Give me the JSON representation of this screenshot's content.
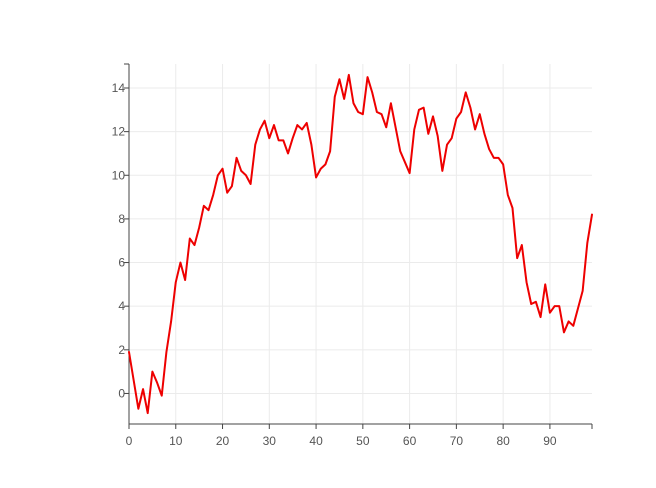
{
  "chart_data": {
    "type": "line",
    "title": "",
    "xlabel": "",
    "ylabel": "",
    "xlim": [
      0,
      99
    ],
    "ylim": [
      -1.4,
      15.1
    ],
    "grid": true,
    "legend": "none",
    "x_ticks": [
      0,
      10,
      20,
      30,
      40,
      50,
      60,
      70,
      80,
      90
    ],
    "y_ticks": [
      0,
      2,
      4,
      6,
      8,
      10,
      12,
      14
    ],
    "line_color": "#ee0000",
    "series": [
      {
        "x": [
          0,
          1,
          2,
          3,
          4,
          5,
          6,
          7,
          8,
          9,
          10,
          11,
          12,
          13,
          14,
          15,
          16,
          17,
          18,
          19,
          20,
          21,
          22,
          23,
          24,
          25,
          26,
          27,
          28,
          29,
          30,
          31,
          32,
          33,
          34,
          35,
          36,
          37,
          38,
          39,
          40,
          41,
          42,
          43,
          44,
          45,
          46,
          47,
          48,
          49,
          50,
          51,
          52,
          53,
          54,
          55,
          56,
          57,
          58,
          59,
          60,
          61,
          62,
          63,
          64,
          65,
          66,
          67,
          68,
          69,
          70,
          71,
          72,
          73,
          74,
          75,
          76,
          77,
          78,
          79,
          80,
          81,
          82,
          83,
          84,
          85,
          86,
          87,
          88,
          89,
          90,
          91,
          92,
          93,
          94,
          95,
          96,
          97,
          98,
          99
        ],
        "values": [
          1.9,
          0.6,
          -0.7,
          0.2,
          -0.9,
          1.0,
          0.5,
          -0.1,
          1.9,
          3.3,
          5.1,
          6.0,
          5.2,
          7.1,
          6.8,
          7.6,
          8.6,
          8.4,
          9.1,
          10.0,
          10.3,
          9.2,
          9.5,
          10.8,
          10.2,
          10.0,
          9.6,
          11.4,
          12.1,
          12.5,
          11.7,
          12.3,
          11.6,
          11.6,
          11.0,
          11.7,
          12.3,
          12.1,
          12.4,
          11.4,
          9.9,
          10.3,
          10.5,
          11.1,
          13.6,
          14.4,
          13.5,
          14.6,
          13.3,
          12.9,
          12.8,
          14.5,
          13.8,
          12.9,
          12.8,
          12.2,
          13.3,
          12.2,
          11.1,
          10.6,
          10.1,
          12.1,
          13.0,
          13.1,
          11.9,
          12.7,
          11.8,
          10.2,
          11.4,
          11.7,
          12.6,
          12.9,
          13.8,
          13.1,
          12.1,
          12.8,
          11.9,
          11.2,
          10.8,
          10.8,
          10.5,
          9.1,
          8.5,
          6.2,
          6.8,
          5.1,
          4.1,
          4.2,
          3.5,
          5.0,
          3.7,
          4.0,
          4.0,
          2.8,
          3.3,
          3.1,
          3.9,
          4.7,
          6.9,
          8.2
        ]
      }
    ]
  }
}
